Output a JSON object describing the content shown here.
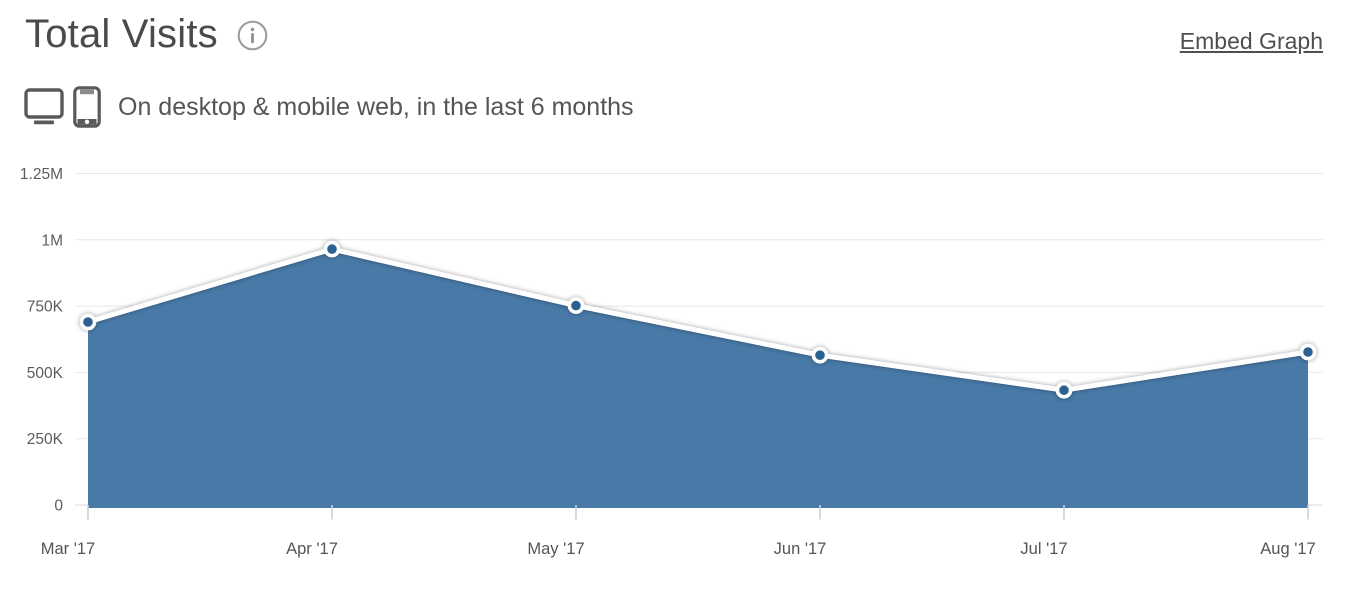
{
  "header": {
    "title": "Total Visits",
    "info_icon": "info-circle-icon",
    "embed_link": "Embed Graph",
    "subtitle": "On desktop & mobile web, in the last 6 months",
    "subtitle_icons": [
      "desktop-monitor-icon",
      "mobile-phone-icon"
    ]
  },
  "chart_data": {
    "type": "area",
    "title": "Total Visits",
    "categories": [
      "Mar '17",
      "Apr '17",
      "May '17",
      "Jun '17",
      "Jul '17",
      "Aug '17"
    ],
    "values": [
      690000,
      965000,
      752000,
      565000,
      433000,
      577000
    ],
    "xlabel": "",
    "ylabel": "",
    "ylim": [
      0,
      1250000
    ],
    "y_ticks": [
      {
        "label": "1.25M",
        "value": 1250000
      },
      {
        "label": "1M",
        "value": 1000000
      },
      {
        "label": "750K",
        "value": 750000
      },
      {
        "label": "500K",
        "value": 500000
      },
      {
        "label": "250K",
        "value": 250000
      },
      {
        "label": "0",
        "value": 0
      }
    ],
    "grid": true,
    "legend": "none",
    "colors": {
      "area_fill": "#4879A7",
      "marker_fill": "#2B6190",
      "line": "#FFFFFF",
      "gridline": "#E8E8E8",
      "baseline": "#DBDBDB",
      "tick": "#C9D2D9",
      "y_label": "#5C5C5C",
      "x_label": "#555555"
    }
  }
}
